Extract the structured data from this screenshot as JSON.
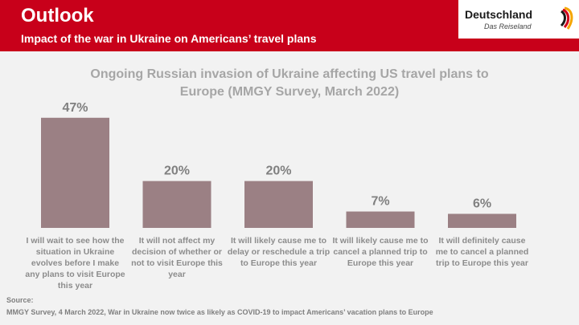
{
  "header": {
    "title": "Outlook",
    "subtitle": "Impact of the war in Ukraine on Americans’ travel plans"
  },
  "logo": {
    "word": "Deutschland",
    "tagline": "Das Reiseland",
    "icon": "flag-swirl-icon",
    "colors": [
      "#1a1a1a",
      "#d0021b",
      "#f5a500"
    ]
  },
  "chart_data": {
    "type": "bar",
    "title": "Ongoing Russian invasion of Ukraine affecting US travel plans to Europe (MMGY Survey, March 2022)",
    "categories": [
      [
        "I will wait to see how the",
        "situation in Ukraine",
        "evolves before I make",
        "any plans to visit Europe",
        "this year"
      ],
      [
        "It will not affect my",
        "decision of whether or",
        "not to visit Europe this",
        "year"
      ],
      [
        "It will likely cause me to",
        "delay or reschedule a trip",
        "to Europe this year"
      ],
      [
        "It will likely cause me to",
        "cancel a planned trip to",
        "Europe this year"
      ],
      [
        "It will definitely cause",
        "me to cancel a planned",
        "trip to Europe this year"
      ]
    ],
    "values": [
      47,
      20,
      20,
      7,
      6
    ],
    "value_labels": [
      "47%",
      "20%",
      "20%",
      "7%",
      "6%"
    ],
    "ylim": [
      0,
      50
    ],
    "grid": false,
    "bar_color": "#9b8084"
  },
  "source": {
    "label": "Source:",
    "text": "MMGY Survey, 4 March 2022, War in Ukraine now twice as likely as COVID-19 to impact Americans’ vacation plans to Europe"
  }
}
